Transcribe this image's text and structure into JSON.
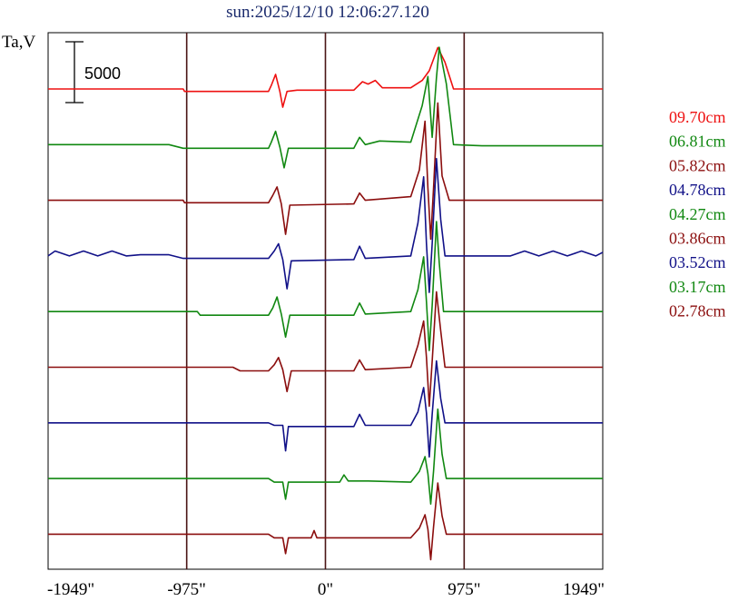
{
  "chart_data": {
    "type": "line",
    "title": "sun:2025/12/10 12:06:27.120",
    "ylabel": "Ta,V",
    "scale_bar_label": "5000",
    "scale_bar_value": 5000,
    "xlim": [
      -1949,
      1949
    ],
    "x_ticks": [
      {
        "value": -1949,
        "label": "-1949\""
      },
      {
        "value": -975,
        "label": "-975\""
      },
      {
        "value": 0,
        "label": "0\""
      },
      {
        "value": 975,
        "label": "975\""
      },
      {
        "value": 1949,
        "label": "1949\""
      }
    ],
    "vertical_lines": [
      -975,
      0,
      975
    ],
    "series": [
      {
        "name": "09.70cm",
        "color": "#ee1111",
        "features": [
          [
            -2000,
            0
          ],
          [
            -1000,
            0
          ],
          [
            -990,
            -200
          ],
          [
            -400,
            -200
          ],
          [
            -380,
            300
          ],
          [
            -350,
            1200
          ],
          [
            -320,
            -200
          ],
          [
            -300,
            -1500
          ],
          [
            -270,
            -200
          ],
          [
            -200,
            -100
          ],
          [
            200,
            -100
          ],
          [
            260,
            600
          ],
          [
            300,
            400
          ],
          [
            350,
            700
          ],
          [
            400,
            100
          ],
          [
            600,
            100
          ],
          [
            680,
            700
          ],
          [
            730,
            1500
          ],
          [
            790,
            3400
          ],
          [
            840,
            2200
          ],
          [
            900,
            0
          ],
          [
            2000,
            0
          ]
        ]
      },
      {
        "name": "06.81cm",
        "color": "#118811",
        "features": [
          [
            -2000,
            0
          ],
          [
            -1100,
            0
          ],
          [
            -1000,
            -300
          ],
          [
            -400,
            -300
          ],
          [
            -380,
            200
          ],
          [
            -350,
            1100
          ],
          [
            -320,
            -200
          ],
          [
            -290,
            -1900
          ],
          [
            -260,
            -300
          ],
          [
            200,
            -300
          ],
          [
            240,
            600
          ],
          [
            280,
            0
          ],
          [
            380,
            300
          ],
          [
            600,
            200
          ],
          [
            680,
            3200
          ],
          [
            720,
            5600
          ],
          [
            750,
            600
          ],
          [
            780,
            5500
          ],
          [
            800,
            8000
          ],
          [
            850,
            5000
          ],
          [
            900,
            0
          ],
          [
            1100,
            -100
          ],
          [
            2000,
            -100
          ]
        ]
      },
      {
        "name": "05.82cm",
        "color": "#8b0e0e",
        "features": [
          [
            -2000,
            0
          ],
          [
            -1000,
            0
          ],
          [
            -990,
            -200
          ],
          [
            -400,
            -200
          ],
          [
            -370,
            400
          ],
          [
            -340,
            1100
          ],
          [
            -310,
            -300
          ],
          [
            -280,
            -2800
          ],
          [
            -250,
            -400
          ],
          [
            200,
            -300
          ],
          [
            240,
            600
          ],
          [
            280,
            0
          ],
          [
            600,
            300
          ],
          [
            660,
            2500
          ],
          [
            700,
            6500
          ],
          [
            720,
            1000
          ],
          [
            740,
            -3200
          ],
          [
            760,
            1000
          ],
          [
            790,
            8000
          ],
          [
            820,
            2000
          ],
          [
            870,
            0
          ],
          [
            2000,
            0
          ]
        ]
      },
      {
        "name": "04.78cm",
        "color": "#111188",
        "features": [
          [
            -2000,
            0
          ],
          [
            -1900,
            400
          ],
          [
            -1800,
            0
          ],
          [
            -1700,
            400
          ],
          [
            -1600,
            0
          ],
          [
            -1500,
            400
          ],
          [
            -1400,
            0
          ],
          [
            -1300,
            100
          ],
          [
            -1100,
            100
          ],
          [
            -1000,
            -200
          ],
          [
            -400,
            -200
          ],
          [
            -360,
            400
          ],
          [
            -330,
            1000
          ],
          [
            -300,
            -300
          ],
          [
            -270,
            -2700
          ],
          [
            -240,
            -400
          ],
          [
            200,
            -300
          ],
          [
            240,
            800
          ],
          [
            280,
            -200
          ],
          [
            600,
            0
          ],
          [
            650,
            2700
          ],
          [
            690,
            6500
          ],
          [
            710,
            1000
          ],
          [
            730,
            -3000
          ],
          [
            750,
            1000
          ],
          [
            780,
            8000
          ],
          [
            810,
            3000
          ],
          [
            840,
            0
          ],
          [
            1300,
            0
          ],
          [
            1400,
            400
          ],
          [
            1500,
            0
          ],
          [
            1600,
            400
          ],
          [
            1700,
            0
          ],
          [
            1800,
            400
          ],
          [
            1900,
            0
          ],
          [
            2000,
            300
          ]
        ]
      },
      {
        "name": "04.27cm",
        "color": "#118811",
        "features": [
          [
            -2000,
            0
          ],
          [
            -900,
            0
          ],
          [
            -880,
            -300
          ],
          [
            -400,
            -300
          ],
          [
            -370,
            300
          ],
          [
            -340,
            1200
          ],
          [
            -310,
            -200
          ],
          [
            -280,
            -2100
          ],
          [
            -250,
            -300
          ],
          [
            200,
            -300
          ],
          [
            240,
            700
          ],
          [
            280,
            -200
          ],
          [
            600,
            0
          ],
          [
            650,
            1800
          ],
          [
            690,
            4500
          ],
          [
            710,
            800
          ],
          [
            730,
            -3200
          ],
          [
            750,
            500
          ],
          [
            780,
            7400
          ],
          [
            800,
            4000
          ],
          [
            830,
            0
          ],
          [
            2000,
            0
          ]
        ]
      },
      {
        "name": "03.86cm",
        "color": "#8b0e0e",
        "features": [
          [
            -2000,
            0
          ],
          [
            -1000,
            0
          ],
          [
            -650,
            0
          ],
          [
            -600,
            -300
          ],
          [
            -400,
            -300
          ],
          [
            -360,
            200
          ],
          [
            -330,
            800
          ],
          [
            -300,
            -200
          ],
          [
            -270,
            -2000
          ],
          [
            -240,
            -300
          ],
          [
            200,
            -300
          ],
          [
            240,
            600
          ],
          [
            280,
            -200
          ],
          [
            600,
            0
          ],
          [
            650,
            1800
          ],
          [
            690,
            3800
          ],
          [
            710,
            800
          ],
          [
            730,
            -3200
          ],
          [
            750,
            500
          ],
          [
            780,
            6200
          ],
          [
            810,
            3000
          ],
          [
            840,
            0
          ],
          [
            2000,
            0
          ]
        ]
      },
      {
        "name": "03.52cm",
        "color": "#111188",
        "features": [
          [
            -2000,
            0
          ],
          [
            -400,
            0
          ],
          [
            -360,
            -200
          ],
          [
            -300,
            -200
          ],
          [
            -280,
            -2300
          ],
          [
            -260,
            -300
          ],
          [
            200,
            -300
          ],
          [
            240,
            700
          ],
          [
            280,
            -200
          ],
          [
            600,
            -200
          ],
          [
            650,
            900
          ],
          [
            690,
            2900
          ],
          [
            710,
            800
          ],
          [
            730,
            -2800
          ],
          [
            750,
            700
          ],
          [
            780,
            5100
          ],
          [
            810,
            2000
          ],
          [
            840,
            0
          ],
          [
            2000,
            0
          ]
        ]
      },
      {
        "name": "03.17cm",
        "color": "#118811",
        "features": [
          [
            -2000,
            0
          ],
          [
            -400,
            0
          ],
          [
            -360,
            -300
          ],
          [
            -300,
            -300
          ],
          [
            -280,
            -1700
          ],
          [
            -260,
            -300
          ],
          [
            100,
            -300
          ],
          [
            130,
            300
          ],
          [
            160,
            -200
          ],
          [
            300,
            -200
          ],
          [
            600,
            -300
          ],
          [
            660,
            600
          ],
          [
            700,
            1800
          ],
          [
            720,
            400
          ],
          [
            740,
            -2100
          ],
          [
            760,
            600
          ],
          [
            790,
            5700
          ],
          [
            820,
            2000
          ],
          [
            850,
            0
          ],
          [
            2000,
            0
          ]
        ]
      },
      {
        "name": "02.78cm",
        "color": "#8b0e0e",
        "features": [
          [
            -2000,
            0
          ],
          [
            -400,
            0
          ],
          [
            -360,
            -300
          ],
          [
            -300,
            -300
          ],
          [
            -280,
            -1600
          ],
          [
            -260,
            -300
          ],
          [
            -100,
            -300
          ],
          [
            -80,
            300
          ],
          [
            -60,
            -300
          ],
          [
            200,
            -300
          ],
          [
            600,
            -300
          ],
          [
            660,
            500
          ],
          [
            700,
            1600
          ],
          [
            720,
            400
          ],
          [
            740,
            -2100
          ],
          [
            760,
            600
          ],
          [
            790,
            4200
          ],
          [
            820,
            1500
          ],
          [
            850,
            0
          ],
          [
            2000,
            0
          ]
        ]
      }
    ]
  }
}
